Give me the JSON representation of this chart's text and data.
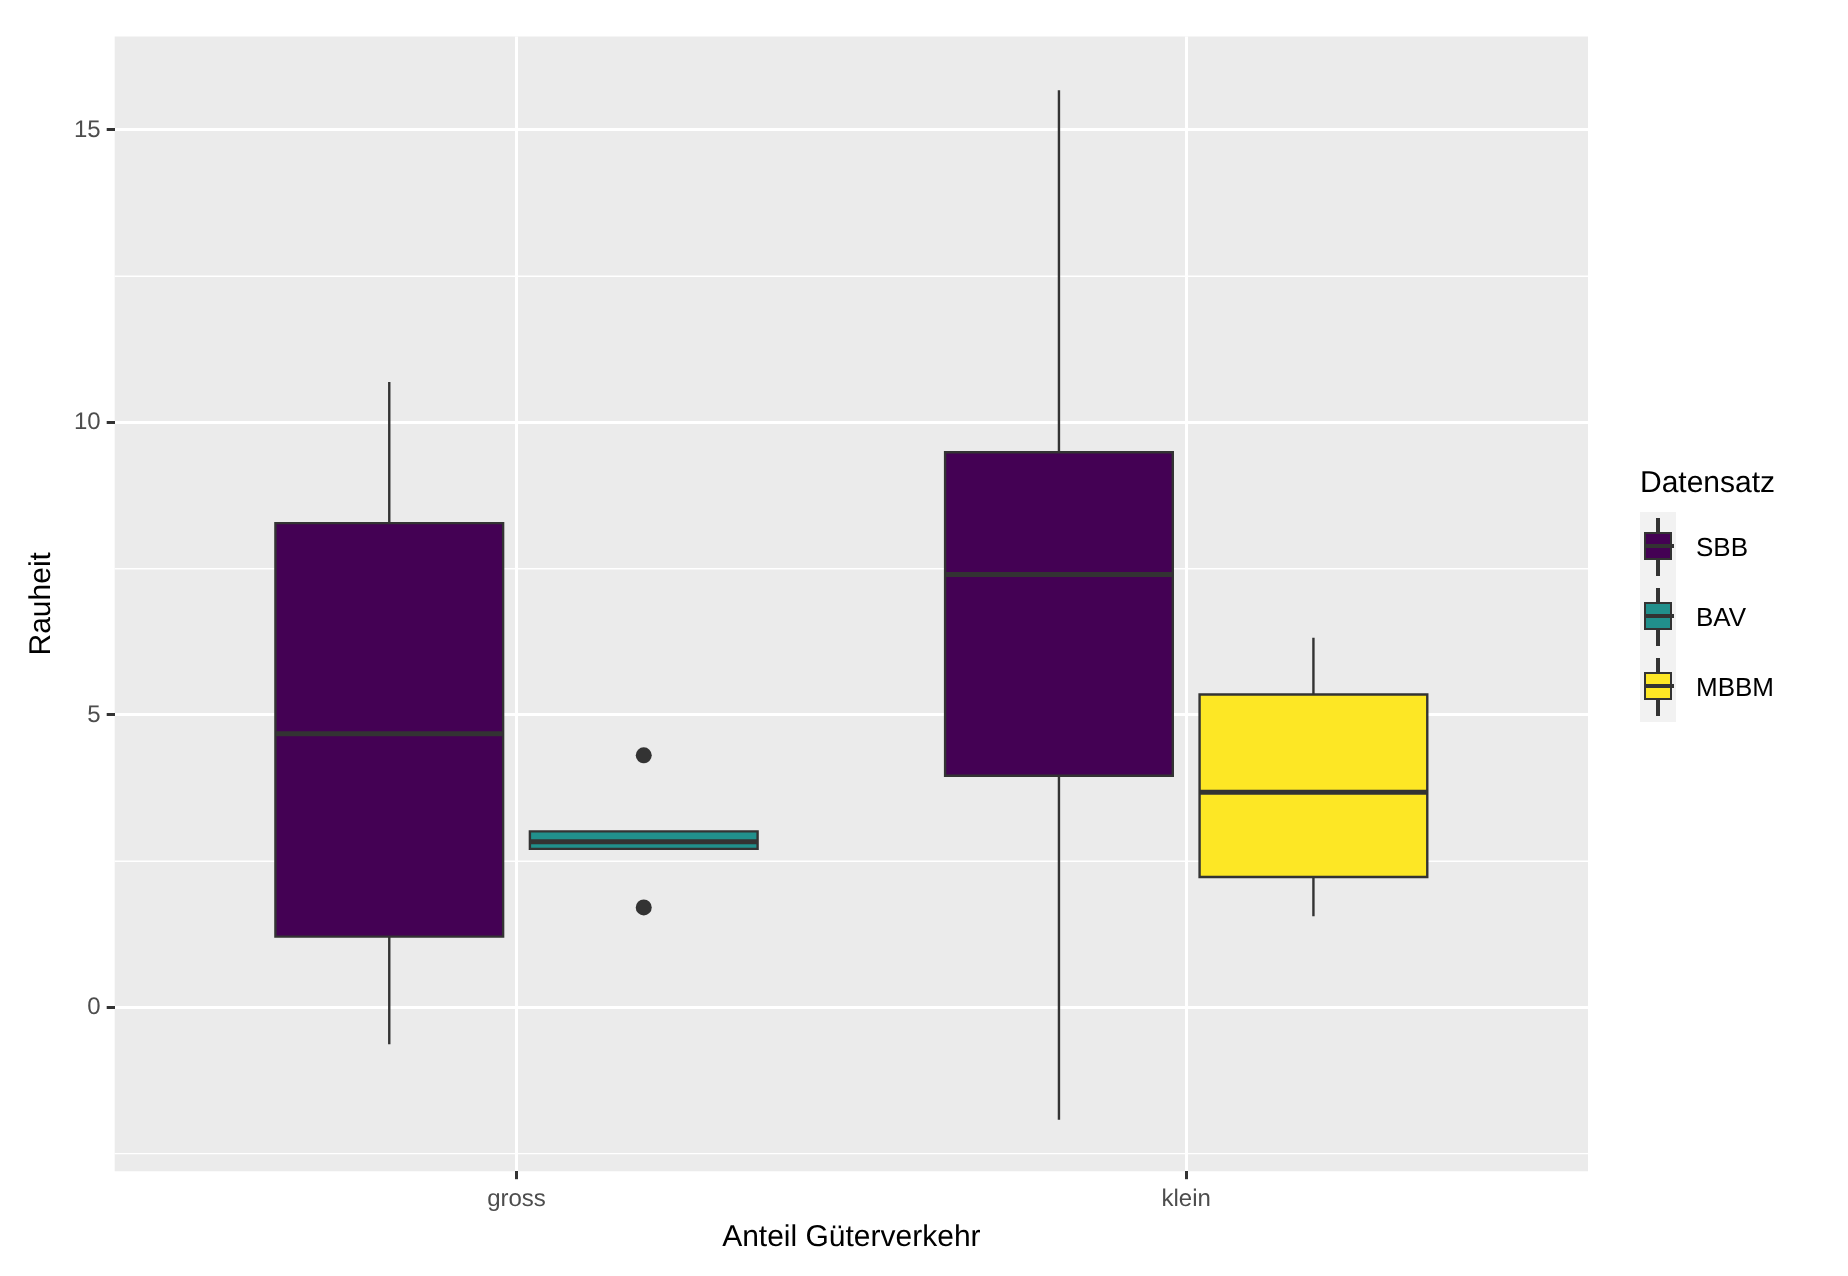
{
  "chart_data": {
    "type": "box",
    "xlabel": "Anteil Güterverkehr",
    "ylabel": "Rauheit",
    "legend_title": "Datensatz",
    "categories": [
      "gross",
      "klein"
    ],
    "series": [
      {
        "name": "SBB",
        "color": "#440154",
        "boxes": [
          {
            "low": -0.63,
            "q1": 1.21,
            "median": 4.68,
            "q3": 8.28,
            "high": 10.69
          },
          {
            "low": -1.92,
            "q1": 3.96,
            "median": 7.4,
            "q3": 9.49,
            "high": 15.68
          }
        ]
      },
      {
        "name": "BAV",
        "color": "#21908c",
        "boxes": [
          {
            "low": 2.71,
            "q1": 2.71,
            "median": 2.83,
            "q3": 3.01,
            "high": 3.01,
            "outliers": [
              4.31,
              1.71
            ]
          },
          null
        ]
      },
      {
        "name": "MBBM",
        "color": "#fde725",
        "boxes": [
          null,
          {
            "low": 1.56,
            "q1": 2.23,
            "median": 3.68,
            "q3": 5.35,
            "high": 6.32
          }
        ]
      }
    ],
    "ylim": [
      -2.8,
      16.6
    ],
    "yticks": [
      0,
      5,
      10,
      15
    ],
    "grid": true,
    "legend": "right"
  }
}
